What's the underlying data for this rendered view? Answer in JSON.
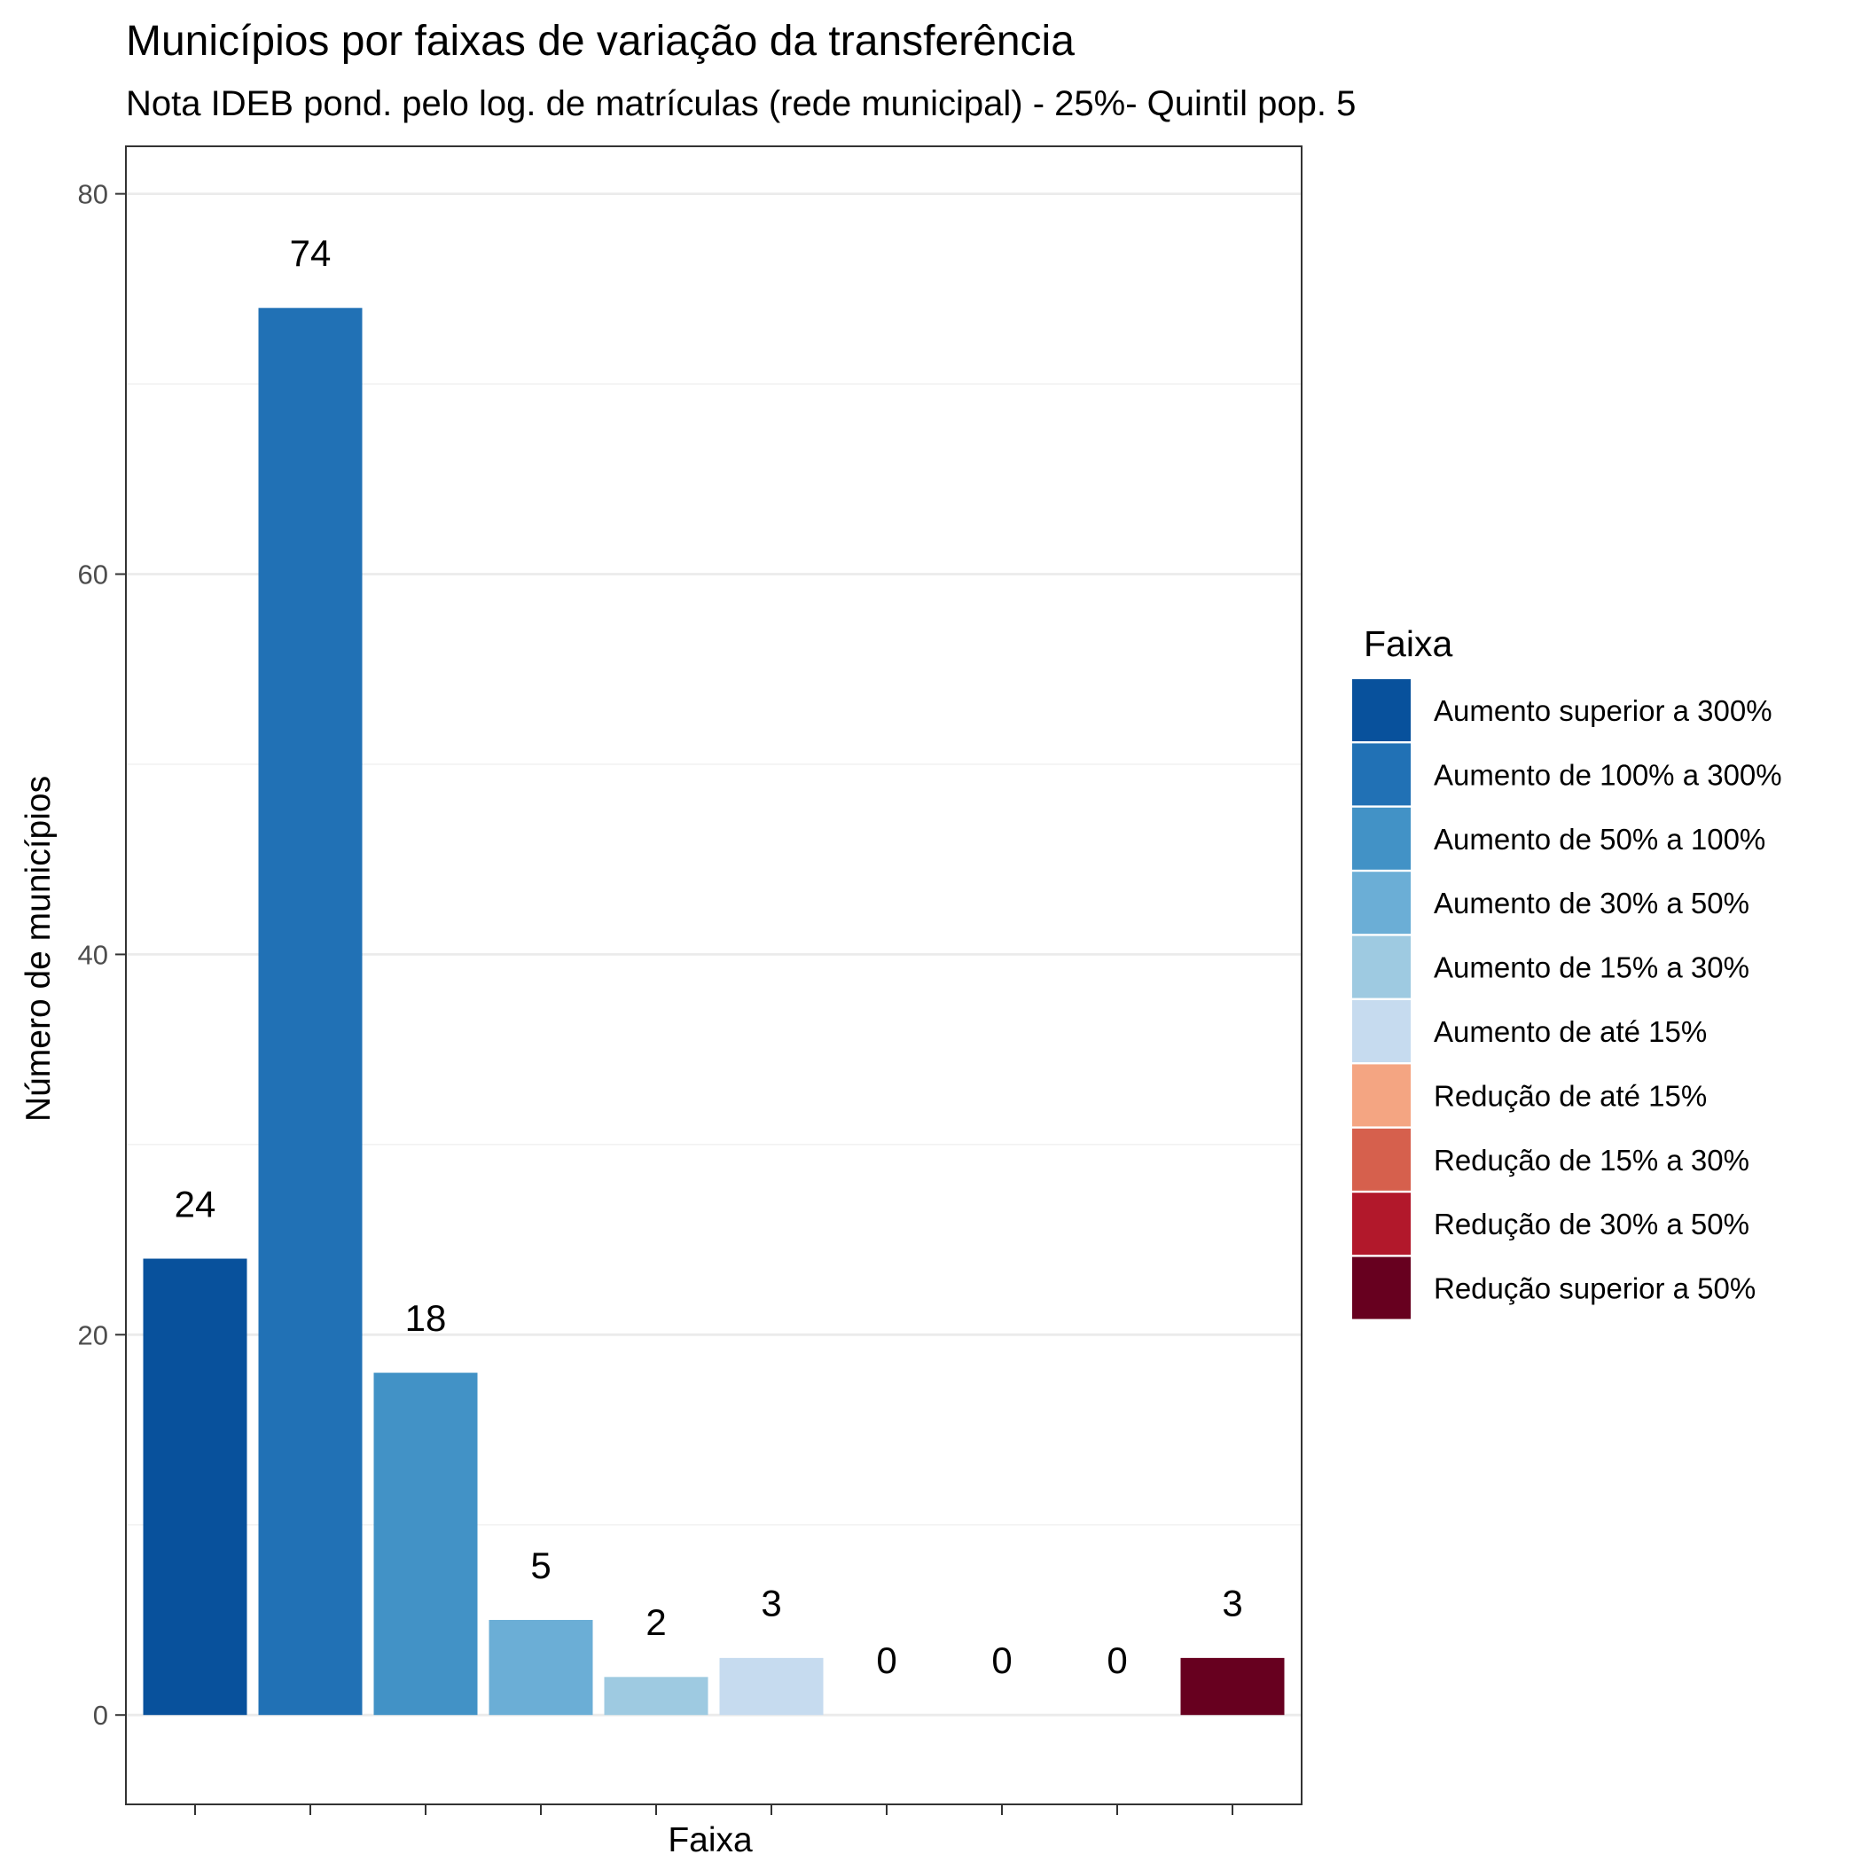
{
  "chart_data": {
    "type": "bar",
    "title": "Municípios por faixas de variação da transferência",
    "subtitle": "Nota IDEB pond. pelo log. de matrículas (rede municipal) - 25%- Quintil pop. 5",
    "xlabel": "Faixa",
    "ylabel": "Número de municípios",
    "ylim": [
      -4.7,
      82.5
    ],
    "yticks": [
      0,
      20,
      40,
      60,
      80
    ],
    "grid": true,
    "legend_position": "right",
    "legend_title": "Faixa",
    "categories": [
      "Aumento superior a 300%",
      "Aumento de 100% a 300%",
      "Aumento de 50% a 100%",
      "Aumento de 30% a 50%",
      "Aumento de 15% a 30%",
      "Aumento de até 15%",
      "Redução de até 15%",
      "Redução de 15% a 30%",
      "Redução de 30% a 50%",
      "Redução superior a 50%"
    ],
    "values": [
      24,
      74,
      18,
      5,
      2,
      3,
      0,
      0,
      0,
      3
    ],
    "data_labels": [
      "24",
      "74",
      "18",
      "5",
      "2",
      "3",
      "0",
      "0",
      "0",
      "3"
    ],
    "colors": [
      "#08519c",
      "#2171b5",
      "#4292c6",
      "#6baed6",
      "#9ecae1",
      "#c6dbef",
      "#f4a582",
      "#d6604d",
      "#b2182b",
      "#67001f"
    ]
  }
}
